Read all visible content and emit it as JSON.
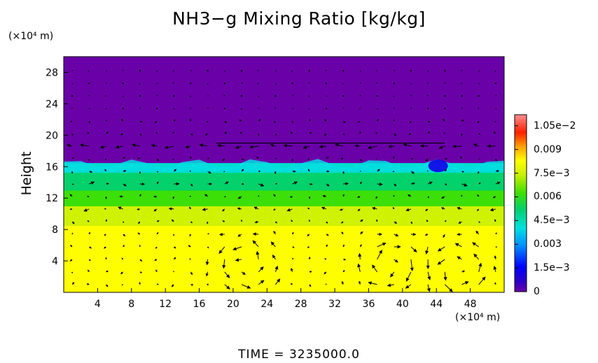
{
  "chart_data": {
    "type": "heatmap",
    "title": "NH3−g Mixing Ratio [kg/kg]",
    "xlabel": "",
    "ylabel": "Height",
    "x_unit": "(×10⁴ m)",
    "y_unit": "(×10⁴ m)",
    "xlim": [
      0,
      52
    ],
    "ylim": [
      0,
      30
    ],
    "xticks": [
      "4",
      "8",
      "12",
      "16",
      "20",
      "24",
      "28",
      "32",
      "36",
      "40",
      "44",
      "48"
    ],
    "yticks": [
      "4",
      "8",
      "12",
      "16",
      "20",
      "24",
      "28"
    ],
    "colorbar": {
      "range": [
        0,
        0.0112
      ],
      "tick_values": [
        0,
        0.0015,
        0.003,
        0.0045,
        0.006,
        0.0075,
        0.009,
        0.0105
      ],
      "tick_labels": [
        "0",
        "1.5e−3",
        "0.003",
        "4.5e−3",
        "0.006",
        "7.5e−3",
        "0.009",
        "1.05e−2"
      ]
    },
    "field_layers": [
      {
        "from_height": 0,
        "to_height": 8.5,
        "value": 0.0083
      },
      {
        "from_height": 8.5,
        "to_height": 11,
        "value": 0.0075
      },
      {
        "from_height": 11,
        "to_height": 13,
        "value": 0.0062
      },
      {
        "from_height": 13,
        "to_height": 15.5,
        "value": 0.0052
      },
      {
        "from_height": 15.5,
        "to_height": 16.5,
        "value": 0.0042
      },
      {
        "from_height": 16.5,
        "to_height": 30,
        "value": 0
      }
    ],
    "overlay": "wind vectors",
    "time_label": "TIME = 3235000.0"
  }
}
